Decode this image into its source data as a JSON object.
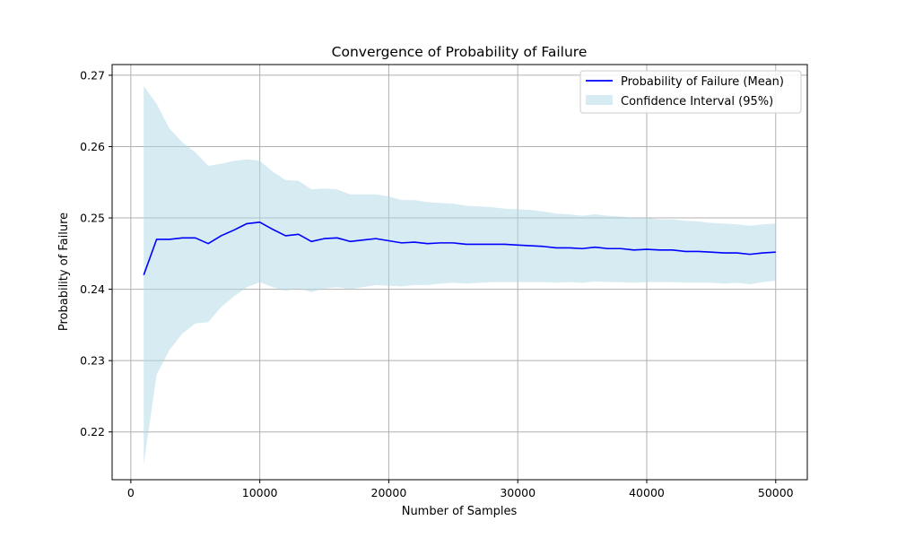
{
  "chart_data": {
    "type": "line",
    "title": "Convergence of Probability of Failure",
    "xlabel": "Number of Samples",
    "ylabel": "Probability of Failure",
    "xlim": [
      -1450,
      52450
    ],
    "ylim": [
      0.2133,
      0.2715
    ],
    "xticks": [
      0,
      10000,
      20000,
      30000,
      40000,
      50000
    ],
    "xtick_labels": [
      "0",
      "10000",
      "20000",
      "30000",
      "40000",
      "50000"
    ],
    "yticks": [
      0.22,
      0.23,
      0.24,
      0.25,
      0.26,
      0.27
    ],
    "ytick_labels": [
      "0.22",
      "0.23",
      "0.24",
      "0.25",
      "0.26",
      "0.27"
    ],
    "grid": true,
    "legend_position": "top-right",
    "x": [
      1000,
      2000,
      3000,
      4000,
      5000,
      6000,
      7000,
      8000,
      9000,
      10000,
      11000,
      12000,
      13000,
      14000,
      15000,
      16000,
      17000,
      18000,
      19000,
      20000,
      21000,
      22000,
      23000,
      24000,
      25000,
      26000,
      27000,
      28000,
      29000,
      30000,
      31000,
      32000,
      33000,
      34000,
      35000,
      36000,
      37000,
      38000,
      39000,
      40000,
      41000,
      42000,
      43000,
      44000,
      45000,
      46000,
      47000,
      48000,
      49000,
      50000
    ],
    "series": [
      {
        "name": "Probability of Failure (Mean)",
        "kind": "line",
        "color": "#0000ff",
        "values": [
          0.242,
          0.247,
          0.247,
          0.2472,
          0.2472,
          0.2464,
          0.2475,
          0.2483,
          0.2492,
          0.2494,
          0.2484,
          0.2475,
          0.2477,
          0.2467,
          0.2471,
          0.2472,
          0.2467,
          0.2469,
          0.2471,
          0.2468,
          0.2465,
          0.2466,
          0.2464,
          0.2465,
          0.2465,
          0.2463,
          0.2463,
          0.2463,
          0.2463,
          0.2462,
          0.2461,
          0.246,
          0.2458,
          0.2458,
          0.2457,
          0.2459,
          0.2457,
          0.2457,
          0.2455,
          0.2456,
          0.2455,
          0.2455,
          0.2453,
          0.2453,
          0.2452,
          0.2451,
          0.2451,
          0.2449,
          0.2451,
          0.2452
        ]
      },
      {
        "name": "Confidence Interval (95%)",
        "kind": "band",
        "color": "#add8e6",
        "lower": [
          0.2155,
          0.228,
          0.2315,
          0.2338,
          0.2352,
          0.2354,
          0.2375,
          0.239,
          0.2403,
          0.241,
          0.2403,
          0.2398,
          0.2401,
          0.2396,
          0.2401,
          0.2403,
          0.24,
          0.2403,
          0.2406,
          0.2405,
          0.2404,
          0.2406,
          0.2406,
          0.2408,
          0.2409,
          0.2408,
          0.2409,
          0.241,
          0.241,
          0.241,
          0.241,
          0.241,
          0.2409,
          0.241,
          0.2409,
          0.2411,
          0.241,
          0.241,
          0.2409,
          0.241,
          0.241,
          0.241,
          0.2409,
          0.2409,
          0.2409,
          0.2408,
          0.2409,
          0.2407,
          0.241,
          0.2412
        ],
        "upper": [
          0.2685,
          0.266,
          0.2625,
          0.2606,
          0.2592,
          0.2573,
          0.2576,
          0.258,
          0.2582,
          0.258,
          0.2565,
          0.2553,
          0.2552,
          0.254,
          0.2541,
          0.254,
          0.2533,
          0.2533,
          0.2533,
          0.253,
          0.2525,
          0.2525,
          0.2522,
          0.2521,
          0.252,
          0.2517,
          0.2516,
          0.2515,
          0.2513,
          0.2512,
          0.2511,
          0.2509,
          0.2506,
          0.2505,
          0.2503,
          0.2505,
          0.2503,
          0.2502,
          0.25,
          0.25,
          0.2498,
          0.2498,
          0.2496,
          0.2495,
          0.2493,
          0.2492,
          0.2491,
          0.2489,
          0.2491,
          0.2492
        ]
      }
    ],
    "gridline_color": "#b0b0b0",
    "axes_color": "#000000"
  }
}
